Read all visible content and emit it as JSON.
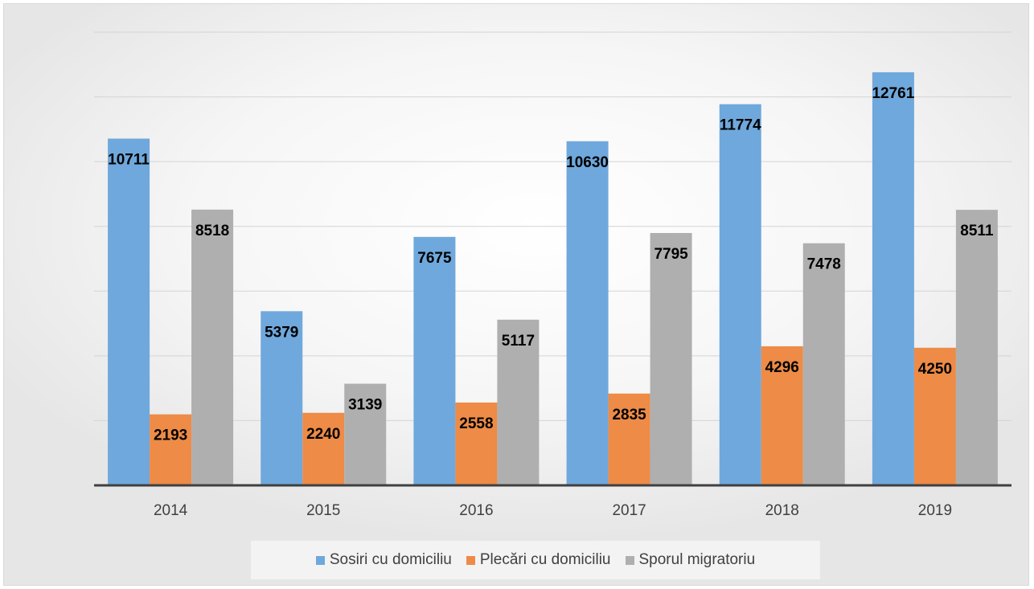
{
  "chart_data": {
    "type": "bar",
    "categories": [
      "2014",
      "2015",
      "2016",
      "2017",
      "2018",
      "2019"
    ],
    "series": [
      {
        "name": "Sosiri cu domiciliu",
        "color": "#6fa8dc",
        "values": [
          10711,
          5379,
          7675,
          10630,
          11774,
          12761
        ]
      },
      {
        "name": "Plecări cu domiciliu",
        "color": "#ed8b47",
        "values": [
          2193,
          2240,
          2558,
          2835,
          4296,
          4250
        ]
      },
      {
        "name": "Sporul migratoriu",
        "color": "#afafaf",
        "values": [
          8518,
          3139,
          5117,
          7795,
          7478,
          8511
        ]
      }
    ],
    "ylim": [
      0,
      14000
    ],
    "grid": true,
    "y_tick_labels_shown": false,
    "data_labels": true,
    "legend_position": "bottom"
  }
}
